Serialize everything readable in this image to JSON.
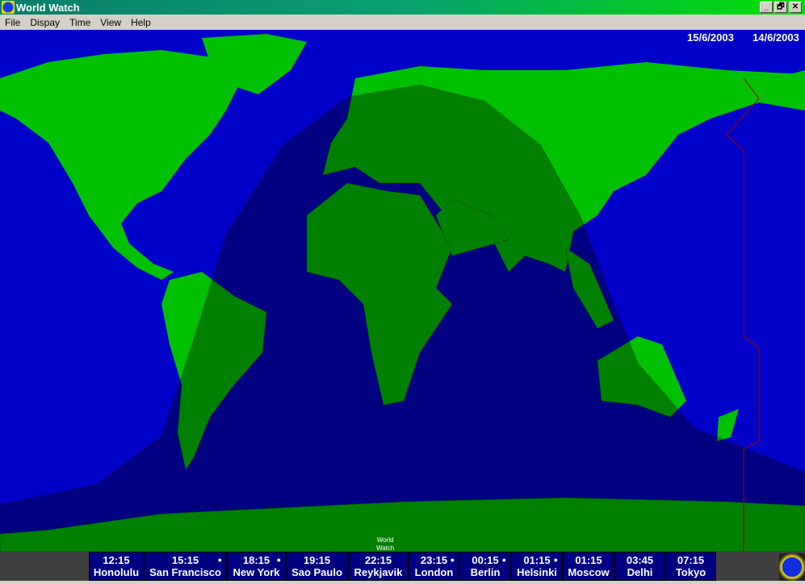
{
  "window": {
    "title": "World Watch",
    "controls": [
      "_",
      "🗗",
      "✕"
    ]
  },
  "menu": [
    "File",
    "Dispay",
    "Time",
    "View",
    "Help"
  ],
  "map": {
    "date_left": "15/6/2003",
    "date_right": "14/6/2003",
    "label_line1": "World",
    "label_line2": "Watch",
    "colors": {
      "ocean_day": "#0000c8",
      "ocean_night": "#000080",
      "land_day": "#00c000",
      "land_night": "#008000",
      "dateline": "#a00000"
    }
  },
  "clocks": [
    {
      "time": "12:15",
      "city": "Honolulu",
      "dst": false
    },
    {
      "time": "15:15",
      "city": "San Francisco",
      "dst": true
    },
    {
      "time": "18:15",
      "city": "New York",
      "dst": true
    },
    {
      "time": "19:15",
      "city": "Sao Paulo",
      "dst": false
    },
    {
      "time": "22:15",
      "city": "Reykjavik",
      "dst": false
    },
    {
      "time": "23:15",
      "city": "London",
      "dst": true
    },
    {
      "time": "00:15",
      "city": "Berlin",
      "dst": true
    },
    {
      "time": "01:15",
      "city": "Helsinki",
      "dst": true
    },
    {
      "time": "01:15",
      "city": "Moscow",
      "dst": false
    },
    {
      "time": "03:45",
      "city": "Delhi",
      "dst": false
    },
    {
      "time": "07:15",
      "city": "Tokyo",
      "dst": false
    }
  ]
}
